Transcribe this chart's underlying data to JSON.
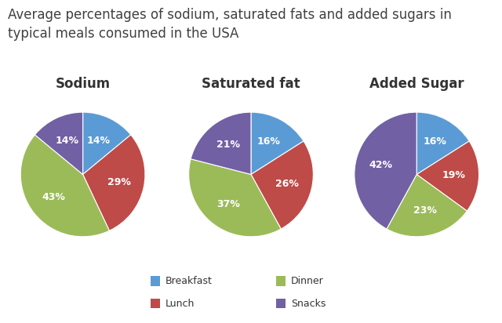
{
  "title": "Average percentages of sodium, saturated fats and added sugars in\ntypical meals consumed in the USA",
  "charts": [
    {
      "title": "Sodium",
      "values": [
        14,
        29,
        43,
        14
      ],
      "labels": [
        "14%",
        "29%",
        "43%",
        "14%"
      ],
      "order": [
        "Breakfast",
        "Lunch",
        "Dinner",
        "Snacks"
      ]
    },
    {
      "title": "Saturated fat",
      "values": [
        16,
        26,
        37,
        21
      ],
      "labels": [
        "16%",
        "26%",
        "37%",
        "21%"
      ],
      "order": [
        "Breakfast",
        "Lunch",
        "Dinner",
        "Snacks"
      ]
    },
    {
      "title": "Added Sugar",
      "values": [
        16,
        19,
        23,
        42
      ],
      "labels": [
        "16%",
        "19%",
        "23%",
        "42%"
      ],
      "order": [
        "Breakfast",
        "Lunch",
        "Dinner",
        "Snacks"
      ]
    }
  ],
  "colors": {
    "Breakfast": "#5B9BD5",
    "Lunch": "#BE4B48",
    "Dinner": "#9BBB59",
    "Snacks": "#7260A5"
  },
  "legend_order_col1": [
    "Breakfast",
    "Lunch"
  ],
  "legend_order_col2": [
    "Dinner",
    "Snacks"
  ],
  "background_color": "#ffffff",
  "title_fontsize": 12,
  "pie_title_fontsize": 12,
  "label_fontsize": 9,
  "legend_fontsize": 9
}
